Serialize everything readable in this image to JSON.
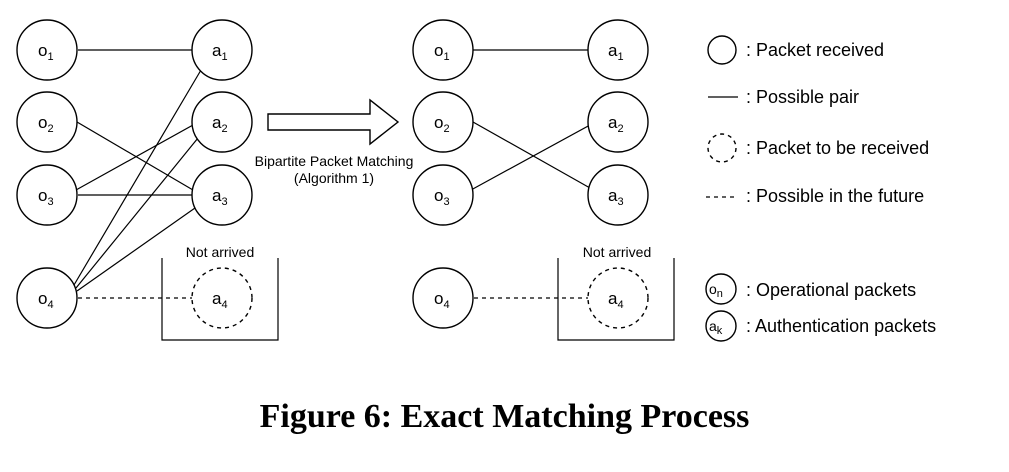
{
  "nodes": {
    "o1": {
      "base": "o",
      "sub": "1"
    },
    "o2": {
      "base": "o",
      "sub": "2"
    },
    "o3": {
      "base": "o",
      "sub": "3"
    },
    "o4": {
      "base": "o",
      "sub": "4"
    },
    "a1": {
      "base": "a",
      "sub": "1"
    },
    "a2": {
      "base": "a",
      "sub": "2"
    },
    "a3": {
      "base": "a",
      "sub": "3"
    },
    "a4": {
      "base": "a",
      "sub": "4"
    }
  },
  "not_arrived_label": "Not arrived",
  "arrow_label_line1": "Bipartite Packet Matching",
  "arrow_label_line2": "(Algorithm 1)",
  "legend": {
    "received": ": Packet  received",
    "pair": ": Possible pair",
    "to_be_received": ": Packet to be received",
    "future": ": Possible in the future",
    "operational_base": "o",
    "operational_sub": "n",
    "operational": ": Operational packets",
    "auth_base": "a",
    "auth_sub": "k",
    "authentication": ": Authentication packets"
  },
  "caption": "Figure 6: Exact Matching Process"
}
